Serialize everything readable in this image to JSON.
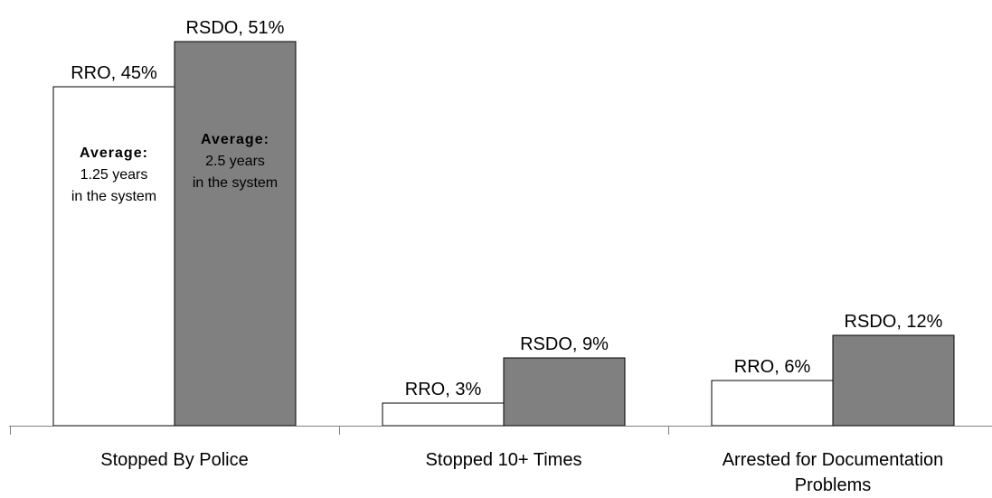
{
  "chart_data": {
    "type": "bar",
    "categories": [
      "Stopped By Police",
      "Stopped 10+ Times",
      "Arrested for Documentation Problems"
    ],
    "category_lines": [
      [
        "Stopped By Police"
      ],
      [
        "Stopped 10+ Times"
      ],
      [
        "Arrested for Documentation",
        "Problems"
      ]
    ],
    "series": [
      {
        "color": "#ffffff",
        "values": [
          45,
          3,
          6
        ],
        "labels": [
          "RRO, 45%",
          "RRO, 3%",
          "RRO, 6%"
        ]
      },
      {
        "color": "#808080",
        "values": [
          51,
          9,
          12
        ],
        "labels": [
          "RSDO, 51%",
          "RSDO, 9%",
          "RSDO, 12%"
        ]
      }
    ],
    "annotations": [
      {
        "category": 0,
        "series": 0,
        "lines": [
          "Average:",
          "1.25 years",
          "in the system"
        ]
      },
      {
        "category": 0,
        "series": 1,
        "lines": [
          "Average:",
          "2.5 years",
          "in the system"
        ]
      }
    ],
    "title": "",
    "xlabel": "",
    "ylabel": "",
    "ylim": [
      0,
      51
    ],
    "grid": false,
    "legend": "none",
    "axis_color": "#808080",
    "bar_stroke": "#000000"
  }
}
